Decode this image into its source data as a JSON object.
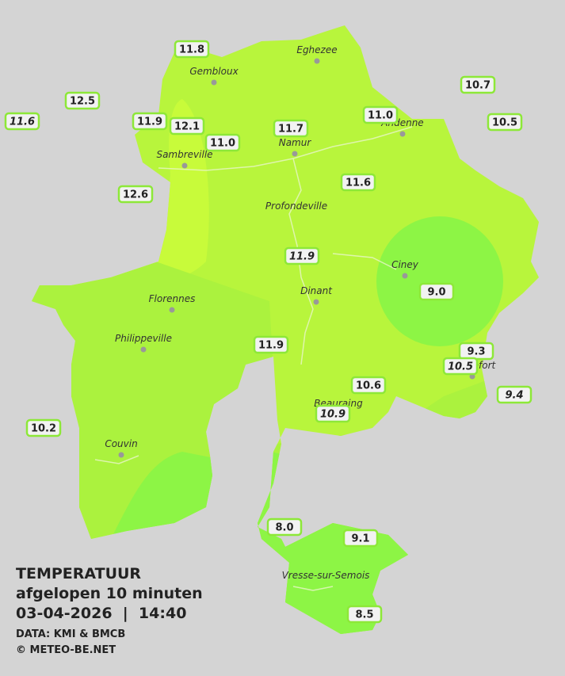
{
  "legend": {
    "title": "TEMPERATUUR",
    "subtitle": "afgelopen 10 minuten",
    "datetime": "03-04-2026  |  14:40",
    "source": "DATA: KMI & BMCB",
    "copyright": "© METEO-BE.NET"
  },
  "cities": [
    "Eghezee",
    "Gembloux",
    "Andenne",
    "Namur",
    "Sambreville",
    "Profondeville",
    "Ciney",
    "Dinant",
    "Florennes",
    "Philippeville",
    "Rochefort",
    "Beauraing",
    "Couvin",
    "Vresse-sur-Semois"
  ],
  "stations": [
    "11.8",
    "12.5",
    "11.6",
    "11.9",
    "12.1",
    "11.0",
    "11.7",
    "11.0",
    "10.7",
    "10.5",
    "12.6",
    "11.6",
    "11.9",
    "9.0",
    "11.9",
    "9.3",
    "10.5",
    "9.4",
    "10.6",
    "10.9",
    "10.2",
    "8.0",
    "9.1",
    "8.5"
  ]
}
